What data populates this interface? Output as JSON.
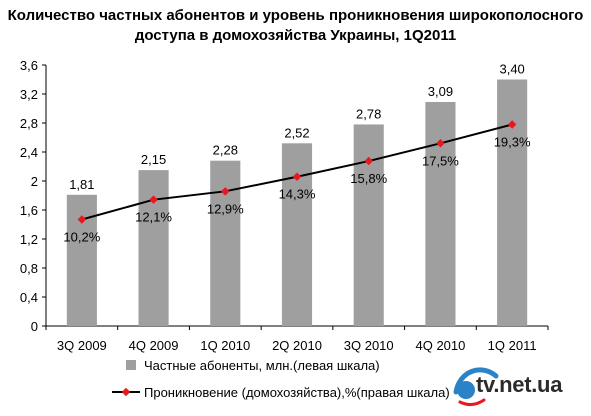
{
  "title_line1": "Количество частных абонентов и уровень проникновения широкополосного",
  "title_line2": "доступа в домохозяйства Украины, 1Q2011",
  "brand": "tv.net.ua",
  "colors": {
    "bar": "#9f9f9f",
    "line": "#000000",
    "marker": "#e8191e"
  },
  "chart_data": {
    "type": "bar",
    "categories": [
      "3Q 2009",
      "4Q 2009",
      "1Q 2010",
      "2Q 2010",
      "3Q 2010",
      "4Q 2010",
      "1Q 2011"
    ],
    "series": [
      {
        "name": "Частные абоненты, млн.(левая шкала)",
        "type": "bar",
        "values": [
          1.81,
          2.15,
          2.28,
          2.52,
          2.78,
          3.09,
          3.4
        ],
        "labels": [
          "1,81",
          "2,15",
          "2,28",
          "2,52",
          "2,78",
          "3,09",
          "3,40"
        ]
      },
      {
        "name": "Проникновение (домохозяйства),%(правая шкала)",
        "type": "line",
        "values": [
          10.2,
          12.1,
          12.9,
          14.3,
          15.8,
          17.5,
          19.3
        ],
        "labels": [
          "10,2%",
          "12,1%",
          "12,9%",
          "14,3%",
          "15,8%",
          "17,5%",
          "19,3%"
        ]
      }
    ],
    "ylim": [
      0,
      3.6
    ],
    "yticks": [
      "0",
      "0,4",
      "0,8",
      "1,2",
      "1,6",
      "2",
      "2,4",
      "2,8",
      "3,2",
      "3,6"
    ],
    "grid": false,
    "legend_position": "bottom"
  }
}
